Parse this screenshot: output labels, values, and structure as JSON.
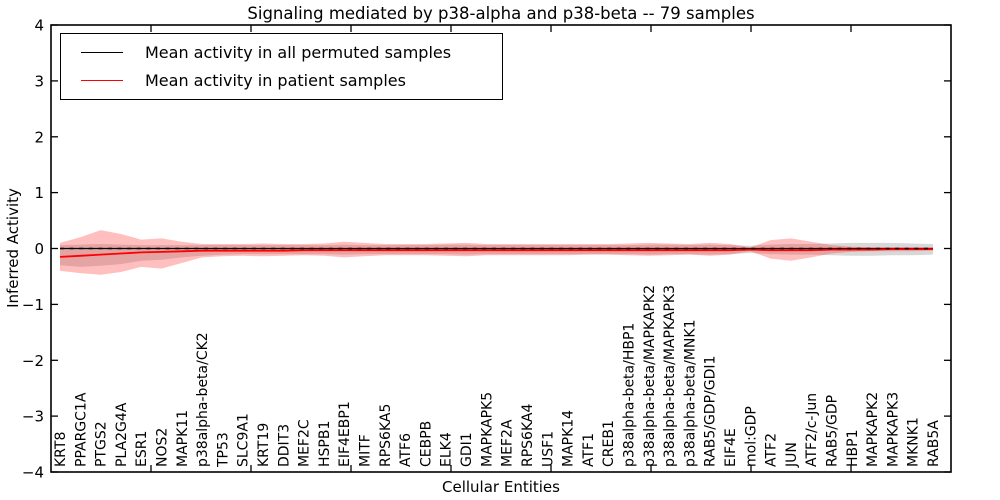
{
  "chart_data": {
    "type": "line",
    "title": "Signaling mediated by p38-alpha and p38-beta -- 79 samples",
    "xlabel": "Cellular Entities",
    "ylabel": "Inferred Activity",
    "ylim": [
      -4,
      4
    ],
    "yticks": [
      4,
      3,
      2,
      1,
      0,
      -1,
      -2,
      -3,
      -4
    ],
    "grid": false,
    "legend_position": "upper left",
    "zero_reference_line": {
      "y": 0,
      "style": "dashed",
      "color": "#000000"
    },
    "categories": [
      "KRT8",
      "PPARGC1A",
      "PTGS2",
      "PLA2G4A",
      "ESR1",
      "NOS2",
      "MAPK11",
      "p38alpha-beta/CK2",
      "TP53",
      "SLC9A1",
      "KRT19",
      "DDIT3",
      "MEF2C",
      "HSPB1",
      "EIF4EBP1",
      "MITF",
      "RPS6KA5",
      "ATF6",
      "CEBPB",
      "ELK4",
      "GDI1",
      "MAPKAPK5",
      "MEF2A",
      "RPS6KA4",
      "USF1",
      "MAPK14",
      "ATF1",
      "CREB1",
      "p38alpha-beta/HBP1",
      "p38alpha-beta/MAPKAPK2",
      "p38alpha-beta/MAPKAPK3",
      "p38alpha-beta/MNK1",
      "RAB5/GDP/GDI1",
      "EIF4E",
      "mol:GDP",
      "ATF2",
      "JUN",
      "ATF2/c-Jun",
      "RAB5/GDP",
      "HBP1",
      "MAPKAPK2",
      "MAPKAPK3",
      "MKNK1",
      "RAB5A"
    ],
    "series": [
      {
        "name": "Mean activity in all permuted samples",
        "color": "#000000",
        "band_color": "#999999",
        "band_opacity": 0.38,
        "values": [
          0,
          0,
          0,
          0,
          0,
          0,
          0,
          0,
          0,
          0,
          0,
          0,
          0,
          0,
          0,
          0,
          0,
          0,
          0,
          0,
          0,
          0,
          0,
          0,
          0,
          0,
          0,
          0,
          0,
          0,
          0,
          0,
          0,
          0,
          0,
          0,
          0,
          0,
          0,
          0,
          0,
          0,
          0,
          0
        ],
        "band_upper": [
          0.06,
          0.07,
          0.08,
          0.07,
          0.06,
          0.06,
          0.06,
          0.06,
          0.06,
          0.06,
          0.06,
          0.06,
          0.06,
          0.06,
          0.07,
          0.06,
          0.06,
          0.06,
          0.06,
          0.07,
          0.07,
          0.06,
          0.06,
          0.06,
          0.06,
          0.06,
          0.06,
          0.06,
          0.06,
          0.07,
          0.07,
          0.06,
          0.07,
          0.06,
          0.05,
          0.07,
          0.08,
          0.08,
          0.09,
          0.1,
          0.1,
          0.1,
          0.09,
          0.08
        ],
        "band_lower": [
          -0.3,
          -0.33,
          -0.31,
          -0.28,
          -0.22,
          -0.2,
          -0.16,
          -0.13,
          -0.11,
          -0.1,
          -0.1,
          -0.1,
          -0.1,
          -0.1,
          -0.11,
          -0.1,
          -0.1,
          -0.1,
          -0.1,
          -0.1,
          -0.11,
          -0.1,
          -0.1,
          -0.1,
          -0.1,
          -0.1,
          -0.1,
          -0.1,
          -0.1,
          -0.11,
          -0.1,
          -0.1,
          -0.11,
          -0.1,
          -0.08,
          -0.1,
          -0.11,
          -0.11,
          -0.12,
          -0.13,
          -0.13,
          -0.12,
          -0.12,
          -0.11
        ]
      },
      {
        "name": "Mean activity in patient samples",
        "color": "#ff0000",
        "band_color": "#ff2a2a",
        "band_opacity": 0.3,
        "values": [
          -0.15,
          -0.13,
          -0.11,
          -0.09,
          -0.07,
          -0.06,
          -0.05,
          -0.04,
          -0.04,
          -0.04,
          -0.04,
          -0.04,
          -0.03,
          -0.03,
          -0.03,
          -0.03,
          -0.03,
          -0.03,
          -0.03,
          -0.03,
          -0.03,
          -0.03,
          -0.03,
          -0.03,
          -0.03,
          -0.03,
          -0.03,
          -0.03,
          -0.03,
          -0.03,
          -0.03,
          -0.03,
          -0.03,
          -0.03,
          -0.02,
          -0.03,
          -0.03,
          -0.03,
          -0.02,
          -0.02,
          -0.02,
          -0.01,
          -0.01,
          -0.01
        ],
        "band_upper": [
          0.1,
          0.2,
          0.33,
          0.26,
          0.16,
          0.18,
          0.12,
          0.08,
          0.08,
          0.08,
          0.09,
          0.08,
          0.08,
          0.09,
          0.12,
          0.1,
          0.08,
          0.08,
          0.08,
          0.09,
          0.1,
          0.08,
          0.08,
          0.08,
          0.08,
          0.08,
          0.08,
          0.08,
          0.09,
          0.1,
          0.09,
          0.08,
          0.1,
          0.08,
          0.02,
          0.15,
          0.18,
          0.12,
          0.06,
          0.03,
          0.02,
          0.02,
          0.02,
          0.02
        ],
        "band_lower": [
          -0.4,
          -0.44,
          -0.47,
          -0.42,
          -0.33,
          -0.36,
          -0.26,
          -0.16,
          -0.14,
          -0.13,
          -0.14,
          -0.13,
          -0.12,
          -0.13,
          -0.16,
          -0.14,
          -0.12,
          -0.12,
          -0.12,
          -0.13,
          -0.14,
          -0.12,
          -0.12,
          -0.12,
          -0.12,
          -0.12,
          -0.11,
          -0.11,
          -0.12,
          -0.13,
          -0.12,
          -0.11,
          -0.13,
          -0.11,
          -0.05,
          -0.18,
          -0.22,
          -0.16,
          -0.09,
          -0.06,
          -0.05,
          -0.05,
          -0.05,
          -0.04
        ]
      }
    ]
  }
}
